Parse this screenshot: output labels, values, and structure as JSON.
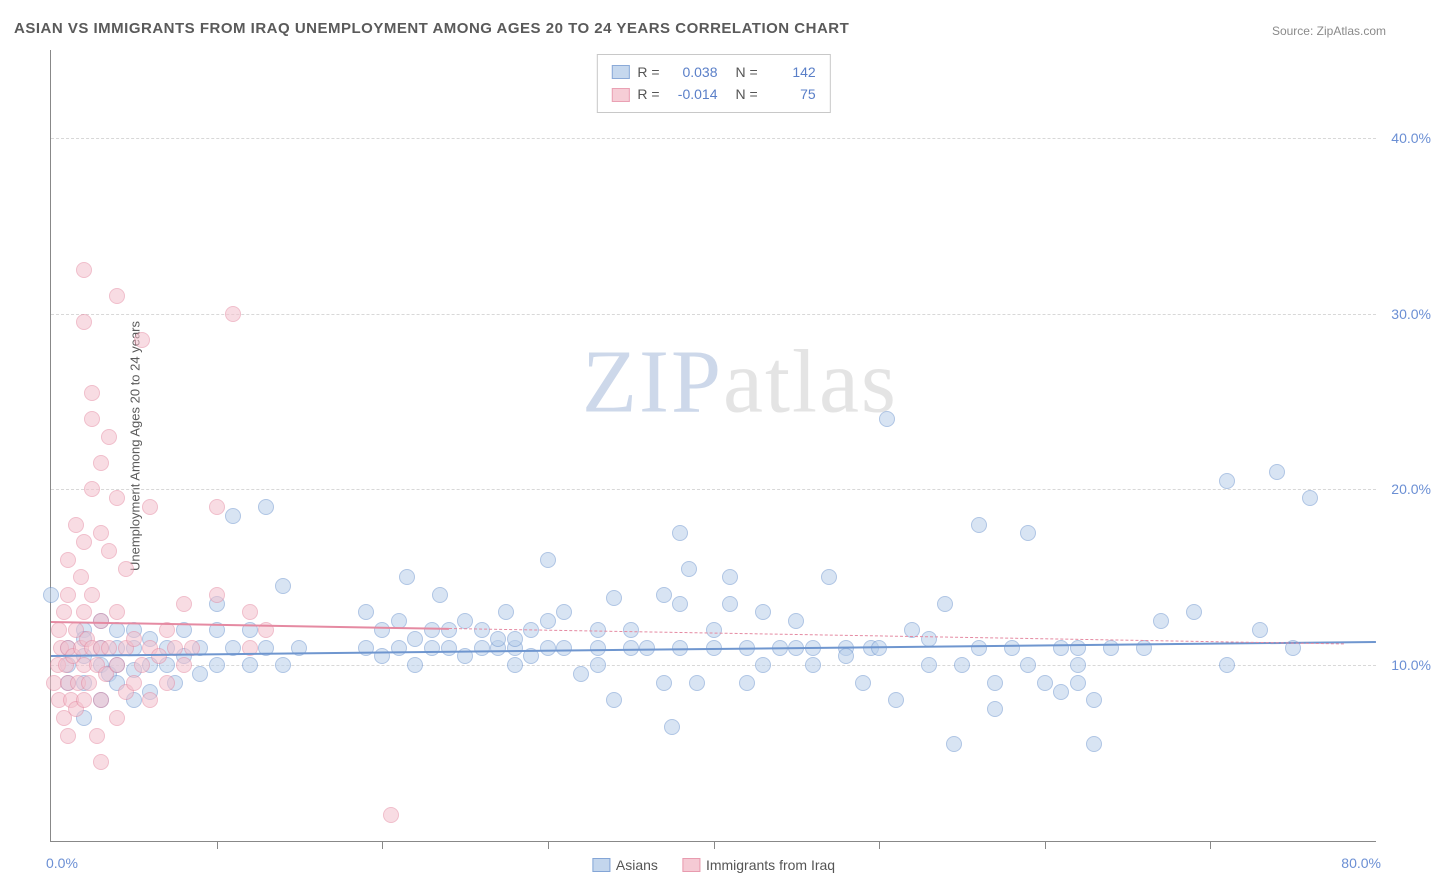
{
  "title": "ASIAN VS IMMIGRANTS FROM IRAQ UNEMPLOYMENT AMONG AGES 20 TO 24 YEARS CORRELATION CHART",
  "source": "Source: ZipAtlas.com",
  "ylabel": "Unemployment Among Ages 20 to 24 years",
  "watermark_a": "ZIP",
  "watermark_b": "atlas",
  "chart": {
    "type": "scatter",
    "xlim": [
      0,
      80
    ],
    "ylim": [
      0,
      45
    ],
    "x_min_label": "0.0%",
    "x_max_label": "80.0%",
    "xticks": [
      10,
      20,
      30,
      40,
      50,
      60,
      70
    ],
    "ytick_labels": [
      {
        "v": 10,
        "label": "10.0%"
      },
      {
        "v": 20,
        "label": "20.0%"
      },
      {
        "v": 30,
        "label": "30.0%"
      },
      {
        "v": 40,
        "label": "40.0%"
      }
    ],
    "background_color": "#ffffff",
    "grid_color": "#d8d8d8",
    "axis_color": "#888888",
    "marker_radius": 8,
    "marker_stroke_width": 1.2,
    "series": [
      {
        "name": "Asians",
        "fill": "#b9cfeb",
        "stroke": "#6f96cf",
        "fill_opacity": 0.55,
        "R_label": "R =",
        "R": "0.038",
        "N_label": "N =",
        "N": "142",
        "trend": {
          "y_at_xmin": 10.6,
          "y_at_xmax": 11.4,
          "solid_until_x": 80,
          "dash_until_x": 80
        },
        "points": [
          [
            0,
            14
          ],
          [
            1,
            9
          ],
          [
            1,
            11
          ],
          [
            1,
            10
          ],
          [
            2,
            7
          ],
          [
            2,
            9
          ],
          [
            2,
            12
          ],
          [
            2,
            10.5
          ],
          [
            2,
            11.5
          ],
          [
            3,
            10
          ],
          [
            3,
            8
          ],
          [
            3,
            11
          ],
          [
            3,
            12.5
          ],
          [
            3.5,
            9.5
          ],
          [
            4,
            9
          ],
          [
            4,
            10
          ],
          [
            4,
            11
          ],
          [
            4,
            12
          ],
          [
            5,
            8
          ],
          [
            5,
            11
          ],
          [
            5,
            12
          ],
          [
            5,
            9.7
          ],
          [
            6,
            10
          ],
          [
            6,
            11.5
          ],
          [
            6,
            8.5
          ],
          [
            7,
            10
          ],
          [
            7,
            11
          ],
          [
            7.5,
            9
          ],
          [
            8,
            10.5
          ],
          [
            8,
            12
          ],
          [
            9,
            11
          ],
          [
            9,
            9.5
          ],
          [
            10,
            10
          ],
          [
            10,
            12
          ],
          [
            10,
            13.5
          ],
          [
            11,
            11
          ],
          [
            11,
            18.5
          ],
          [
            12,
            10
          ],
          [
            12,
            12
          ],
          [
            13,
            11
          ],
          [
            13,
            19
          ],
          [
            14,
            10
          ],
          [
            14,
            14.5
          ],
          [
            15,
            11
          ],
          [
            19,
            11
          ],
          [
            19,
            13
          ],
          [
            20,
            12
          ],
          [
            20,
            10.5
          ],
          [
            21,
            11
          ],
          [
            21,
            12.5
          ],
          [
            21.5,
            15
          ],
          [
            22,
            10
          ],
          [
            22,
            11.5
          ],
          [
            23,
            11
          ],
          [
            23,
            12
          ],
          [
            23.5,
            14
          ],
          [
            24,
            11
          ],
          [
            24,
            12
          ],
          [
            25,
            10.5
          ],
          [
            25,
            12.5
          ],
          [
            26,
            11
          ],
          [
            26,
            12
          ],
          [
            27,
            11
          ],
          [
            27,
            11.5
          ],
          [
            27.5,
            13
          ],
          [
            28,
            11
          ],
          [
            28,
            11.5
          ],
          [
            28,
            10
          ],
          [
            29,
            10.5
          ],
          [
            29,
            12
          ],
          [
            30,
            11
          ],
          [
            30,
            12.5
          ],
          [
            30,
            16
          ],
          [
            31,
            11
          ],
          [
            31,
            13
          ],
          [
            32,
            9.5
          ],
          [
            33,
            11
          ],
          [
            33,
            10
          ],
          [
            33,
            12
          ],
          [
            34,
            13.8
          ],
          [
            34,
            8
          ],
          [
            35,
            11
          ],
          [
            35,
            12
          ],
          [
            36,
            11
          ],
          [
            37,
            14
          ],
          [
            37,
            9
          ],
          [
            37.5,
            6.5
          ],
          [
            38,
            17.5
          ],
          [
            38,
            11
          ],
          [
            38,
            13.5
          ],
          [
            38.5,
            15.5
          ],
          [
            39,
            9
          ],
          [
            40,
            11
          ],
          [
            40,
            12
          ],
          [
            41,
            15
          ],
          [
            41,
            13.5
          ],
          [
            42,
            9
          ],
          [
            42,
            11
          ],
          [
            43,
            13
          ],
          [
            43,
            10
          ],
          [
            44,
            11
          ],
          [
            45,
            11
          ],
          [
            45,
            12.5
          ],
          [
            46,
            10
          ],
          [
            46,
            11
          ],
          [
            47,
            15
          ],
          [
            48,
            11
          ],
          [
            48,
            10.5
          ],
          [
            49,
            9
          ],
          [
            49.5,
            11
          ],
          [
            50,
            11
          ],
          [
            50.5,
            24
          ],
          [
            51,
            8
          ],
          [
            52,
            12
          ],
          [
            53,
            10
          ],
          [
            53,
            11.5
          ],
          [
            54,
            13.5
          ],
          [
            54.5,
            5.5
          ],
          [
            55,
            10
          ],
          [
            56,
            11
          ],
          [
            56,
            18
          ],
          [
            57,
            9
          ],
          [
            57,
            7.5
          ],
          [
            58,
            11
          ],
          [
            59,
            10
          ],
          [
            59,
            17.5
          ],
          [
            60,
            9
          ],
          [
            61,
            11
          ],
          [
            61,
            8.5
          ],
          [
            62,
            11
          ],
          [
            62,
            10
          ],
          [
            62,
            9
          ],
          [
            63,
            5.5
          ],
          [
            63,
            8
          ],
          [
            64,
            11
          ],
          [
            66,
            11
          ],
          [
            67,
            12.5
          ],
          [
            69,
            13
          ],
          [
            71,
            10
          ],
          [
            71,
            20.5
          ],
          [
            73,
            12
          ],
          [
            74,
            21
          ],
          [
            75,
            11
          ],
          [
            76,
            19.5
          ]
        ]
      },
      {
        "name": "Immigrants from Iraq",
        "fill": "#f4c1cd",
        "stroke": "#e58aa2",
        "fill_opacity": 0.55,
        "R_label": "R =",
        "R": "-0.014",
        "N_label": "N =",
        "N": "75",
        "trend": {
          "y_at_xmin": 12.5,
          "y_at_xmax": 11.2,
          "solid_until_x": 24,
          "dash_until_x": 78
        },
        "points": [
          [
            0.2,
            9
          ],
          [
            0.4,
            10
          ],
          [
            0.5,
            12
          ],
          [
            0.5,
            8
          ],
          [
            0.6,
            11
          ],
          [
            0.8,
            7
          ],
          [
            0.8,
            13
          ],
          [
            0.9,
            10
          ],
          [
            1,
            6
          ],
          [
            1,
            9
          ],
          [
            1,
            11
          ],
          [
            1,
            14
          ],
          [
            1,
            16
          ],
          [
            1.2,
            8
          ],
          [
            1.3,
            10.5
          ],
          [
            1.5,
            12
          ],
          [
            1.5,
            18
          ],
          [
            1.5,
            7.5
          ],
          [
            1.6,
            9
          ],
          [
            1.8,
            11
          ],
          [
            1.8,
            15
          ],
          [
            2,
            8
          ],
          [
            2,
            10
          ],
          [
            2,
            13
          ],
          [
            2,
            17
          ],
          [
            2,
            29.5
          ],
          [
            2,
            32.5
          ],
          [
            2.2,
            11.5
          ],
          [
            2.3,
            9
          ],
          [
            2.5,
            11
          ],
          [
            2.5,
            14
          ],
          [
            2.5,
            20
          ],
          [
            2.5,
            24
          ],
          [
            2.5,
            25.5
          ],
          [
            2.8,
            6
          ],
          [
            2.8,
            10
          ],
          [
            3,
            8
          ],
          [
            3,
            11
          ],
          [
            3,
            12.5
          ],
          [
            3,
            17.5
          ],
          [
            3,
            21.5
          ],
          [
            3,
            4.5
          ],
          [
            3.3,
            9.5
          ],
          [
            3.5,
            11
          ],
          [
            3.5,
            16.5
          ],
          [
            3.5,
            23
          ],
          [
            4,
            7
          ],
          [
            4,
            10
          ],
          [
            4,
            13
          ],
          [
            4,
            19.5
          ],
          [
            4,
            31
          ],
          [
            4.5,
            8.5
          ],
          [
            4.5,
            11
          ],
          [
            4.5,
            15.5
          ],
          [
            5,
            9
          ],
          [
            5,
            11.5
          ],
          [
            5.5,
            10
          ],
          [
            5.5,
            28.5
          ],
          [
            6,
            8
          ],
          [
            6,
            11
          ],
          [
            6,
            19
          ],
          [
            6.5,
            10.5
          ],
          [
            7,
            9
          ],
          [
            7,
            12
          ],
          [
            7.5,
            11
          ],
          [
            8,
            10
          ],
          [
            8,
            13.5
          ],
          [
            8.5,
            11
          ],
          [
            10,
            14
          ],
          [
            10,
            19
          ],
          [
            11,
            30
          ],
          [
            12,
            11
          ],
          [
            12,
            13
          ],
          [
            13,
            12
          ],
          [
            20.5,
            1.5
          ]
        ]
      }
    ]
  },
  "bottom_legend": [
    {
      "label": "Asians",
      "fill": "#b9cfeb",
      "stroke": "#6f96cf"
    },
    {
      "label": "Immigrants from Iraq",
      "fill": "#f4c1cd",
      "stroke": "#e58aa2"
    }
  ]
}
